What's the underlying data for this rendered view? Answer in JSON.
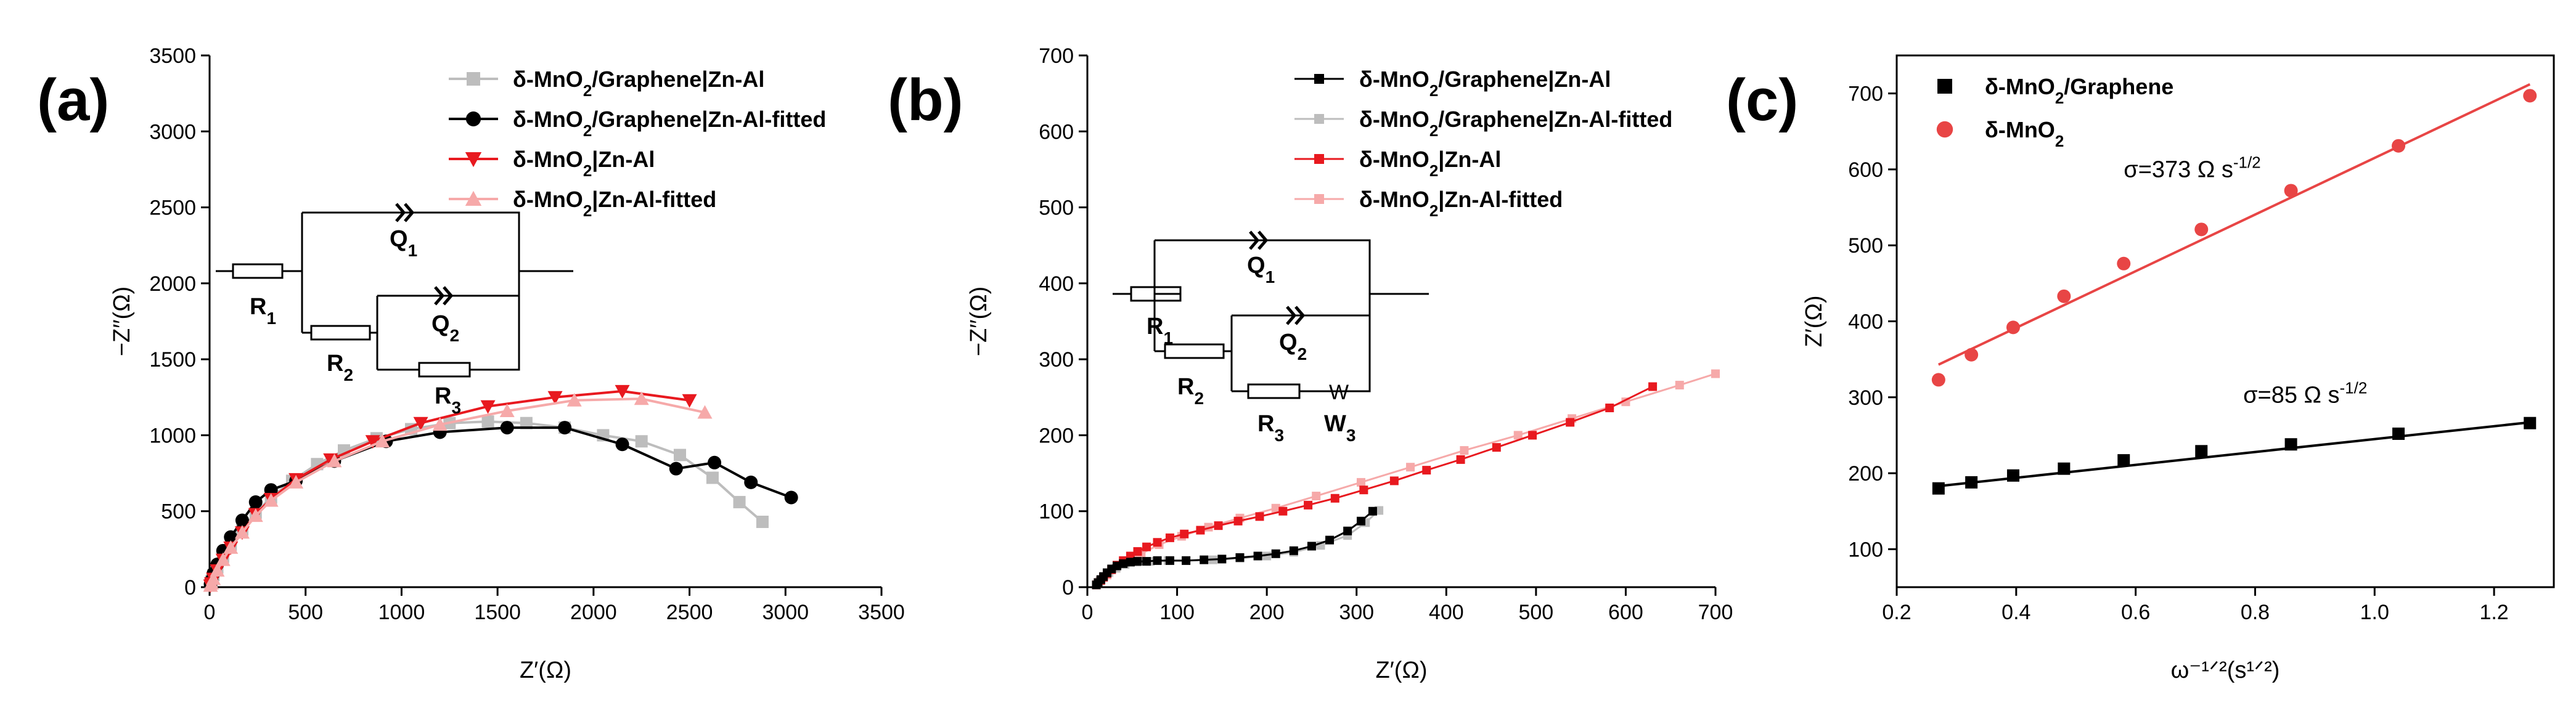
{
  "chart_data": [
    {
      "panel": "(a)",
      "type": "line",
      "xlabel": "Z′(Ω)",
      "ylabel": "−Z′′(Ω)",
      "xlim": [
        0,
        3500
      ],
      "ylim": [
        0,
        3500
      ],
      "xticks": [
        0,
        500,
        1000,
        1500,
        2000,
        2500,
        3000,
        3500
      ],
      "yticks": [
        0,
        500,
        1000,
        1500,
        2000,
        2500,
        3000,
        3500
      ],
      "legend_position": "top-right",
      "series": [
        {
          "name": "δ-MnO2/Graphene|Zn-Al",
          "color": "#bdbdbd",
          "marker": "square",
          "x": [
            5,
            10,
            20,
            40,
            70,
            110,
            170,
            240,
            320,
            430,
            560,
            700,
            870,
            1050,
            1250,
            1450,
            1650,
            1850,
            2050,
            2250,
            2450,
            2620,
            2760,
            2880
          ],
          "y": [
            20,
            40,
            80,
            130,
            200,
            280,
            380,
            490,
            590,
            700,
            810,
            900,
            980,
            1040,
            1080,
            1090,
            1080,
            1050,
            1000,
            960,
            870,
            720,
            560,
            430
          ]
        },
        {
          "name": "δ-MnO2/Graphene|Zn-Al-fitted",
          "color": "#000000",
          "marker": "circle",
          "x": [
            5,
            10,
            20,
            40,
            70,
            110,
            170,
            240,
            320,
            450,
            650,
            920,
            1200,
            1550,
            1850,
            2150,
            2430,
            2630,
            2820,
            3030
          ],
          "y": [
            20,
            45,
            90,
            150,
            240,
            330,
            440,
            560,
            640,
            700,
            830,
            960,
            1020,
            1050,
            1050,
            940,
            780,
            820,
            690,
            590
          ]
        },
        {
          "name": "δ-MnO2|Zn-Al",
          "color": "#e8191f",
          "marker": "triangle-down",
          "x": [
            5,
            10,
            20,
            40,
            70,
            110,
            170,
            240,
            320,
            450,
            630,
            850,
            1100,
            1450,
            1800,
            2150,
            2500
          ],
          "y": [
            10,
            25,
            55,
            110,
            180,
            260,
            360,
            480,
            580,
            710,
            840,
            960,
            1080,
            1190,
            1250,
            1290,
            1230
          ]
        },
        {
          "name": "δ-MnO2|Zn-Al-fitted",
          "color": "#f6a9a9",
          "marker": "triangle-up",
          "x": [
            5,
            10,
            20,
            40,
            70,
            110,
            170,
            240,
            320,
            450,
            650,
            900,
            1200,
            1550,
            1900,
            2250,
            2580
          ],
          "y": [
            10,
            25,
            55,
            110,
            180,
            260,
            360,
            470,
            570,
            690,
            830,
            960,
            1070,
            1160,
            1230,
            1240,
            1150
          ]
        }
      ],
      "inset": {
        "type": "circuit",
        "labels": {
          "r1": "R",
          "r1s": "1",
          "r2": "R",
          "r2s": "2",
          "r3": "R",
          "r3s": "3",
          "q1": "Q",
          "q1s": "1",
          "q2": "Q",
          "q2s": "2"
        }
      }
    },
    {
      "panel": "(b)",
      "type": "line",
      "xlabel": "Z′(Ω)",
      "ylabel": "−Z′′(Ω)",
      "xlim": [
        0,
        700
      ],
      "ylim": [
        0,
        700
      ],
      "xticks": [
        0,
        100,
        200,
        300,
        400,
        500,
        600,
        700
      ],
      "yticks": [
        0,
        100,
        200,
        300,
        400,
        500,
        600,
        700
      ],
      "legend_position": "top-right",
      "series": [
        {
          "name": "δ-MnO2/Graphene|Zn-Al",
          "color": "#000000",
          "marker": "square",
          "x": [
            10,
            12,
            15,
            18,
            22,
            27,
            33,
            40,
            48,
            56,
            66,
            78,
            92,
            110,
            130,
            150,
            170,
            190,
            210,
            230,
            250,
            270,
            290,
            305,
            318
          ],
          "y": [
            3,
            6,
            10,
            14,
            19,
            24,
            28,
            31,
            33,
            34,
            34,
            35,
            35,
            35,
            36,
            37,
            39,
            41,
            44,
            48,
            54,
            62,
            74,
            87,
            100
          ]
        },
        {
          "name": "δ-MnO2/Graphene|Zn-Al-fitted",
          "color": "#bdbdbd",
          "marker": "square",
          "x": [
            10,
            14,
            18,
            24,
            32,
            42,
            55,
            70,
            90,
            110,
            140,
            170,
            200,
            230,
            260,
            290,
            310,
            325
          ],
          "y": [
            3,
            8,
            13,
            19,
            25,
            30,
            33,
            34,
            35,
            35,
            36,
            38,
            41,
            46,
            55,
            68,
            85,
            101
          ]
        },
        {
          "name": "δ-MnO2|Zn-Al",
          "color": "#e8191f",
          "marker": "square",
          "x": [
            10,
            12,
            15,
            18,
            22,
            27,
            33,
            40,
            48,
            56,
            66,
            78,
            92,
            108,
            126,
            146,
            168,
            192,
            218,
            246,
            276,
            308,
            342,
            378,
            416,
            456,
            496,
            538,
            582,
            630
          ],
          "y": [
            3,
            6,
            9,
            13,
            18,
            23,
            29,
            35,
            41,
            47,
            53,
            59,
            65,
            70,
            75,
            81,
            87,
            93,
            100,
            108,
            117,
            128,
            140,
            154,
            168,
            184,
            200,
            217,
            236,
            264
          ]
        },
        {
          "name": "δ-MnO2|Zn-Al-fitted",
          "color": "#f6a9a9",
          "marker": "square",
          "x": [
            10,
            15,
            22,
            32,
            45,
            60,
            80,
            105,
            135,
            170,
            210,
            255,
            305,
            360,
            420,
            480,
            540,
            600,
            660,
            700
          ],
          "y": [
            3,
            9,
            16,
            25,
            35,
            44,
            56,
            67,
            79,
            91,
            104,
            120,
            138,
            158,
            180,
            200,
            222,
            244,
            266,
            281
          ]
        }
      ],
      "inset": {
        "type": "circuit",
        "labels": {
          "r1": "R",
          "r1s": "1",
          "r2": "R",
          "r2s": "2",
          "r3": "R",
          "r3s": "3",
          "q1": "Q",
          "q1s": "1",
          "q2": "Q",
          "q2s": "2",
          "w": "W",
          "w3": "W",
          "w3s": "3"
        }
      }
    },
    {
      "panel": "(c)",
      "type": "scatter",
      "xlabel": "ω⁻¹ᐟ²(s¹ᐟ²)",
      "ylabel": "Z′(Ω)",
      "xlim": [
        0.2,
        1.3
      ],
      "ylim": [
        50,
        750
      ],
      "xticks": [
        0.2,
        0.4,
        0.6,
        0.8,
        1.0,
        1.2
      ],
      "ytick_values": [
        100,
        200,
        300,
        400,
        500,
        600,
        700
      ],
      "legend_position": "top-left",
      "series": [
        {
          "name": "δ-MnO2/Graphene",
          "color": "#000000",
          "marker": "square",
          "x": [
            0.27,
            0.325,
            0.395,
            0.48,
            0.58,
            0.71,
            0.86,
            1.04,
            1.26
          ],
          "y": [
            180,
            188,
            197,
            206,
            217,
            229,
            238,
            252,
            266
          ],
          "fit": {
            "x": [
              0.27,
              1.26
            ],
            "y": [
              183,
              267
            ]
          }
        },
        {
          "name": "δ-MnO2",
          "color": "#e84545",
          "marker": "circle",
          "x": [
            0.27,
            0.325,
            0.395,
            0.48,
            0.58,
            0.71,
            0.86,
            1.04,
            1.26
          ],
          "y": [
            323,
            356,
            392,
            433,
            476,
            521,
            572,
            631,
            697
          ],
          "fit": {
            "x": [
              0.27,
              1.26
            ],
            "y": [
              343,
              712
            ]
          }
        }
      ],
      "annotations": [
        {
          "text": "σ=373 Ω s",
          "sup": "-1/2",
          "x": 0.58,
          "y": 590
        },
        {
          "text": "σ=85 Ω s",
          "sup": "-1/2",
          "x": 0.78,
          "y": 293
        }
      ]
    }
  ]
}
